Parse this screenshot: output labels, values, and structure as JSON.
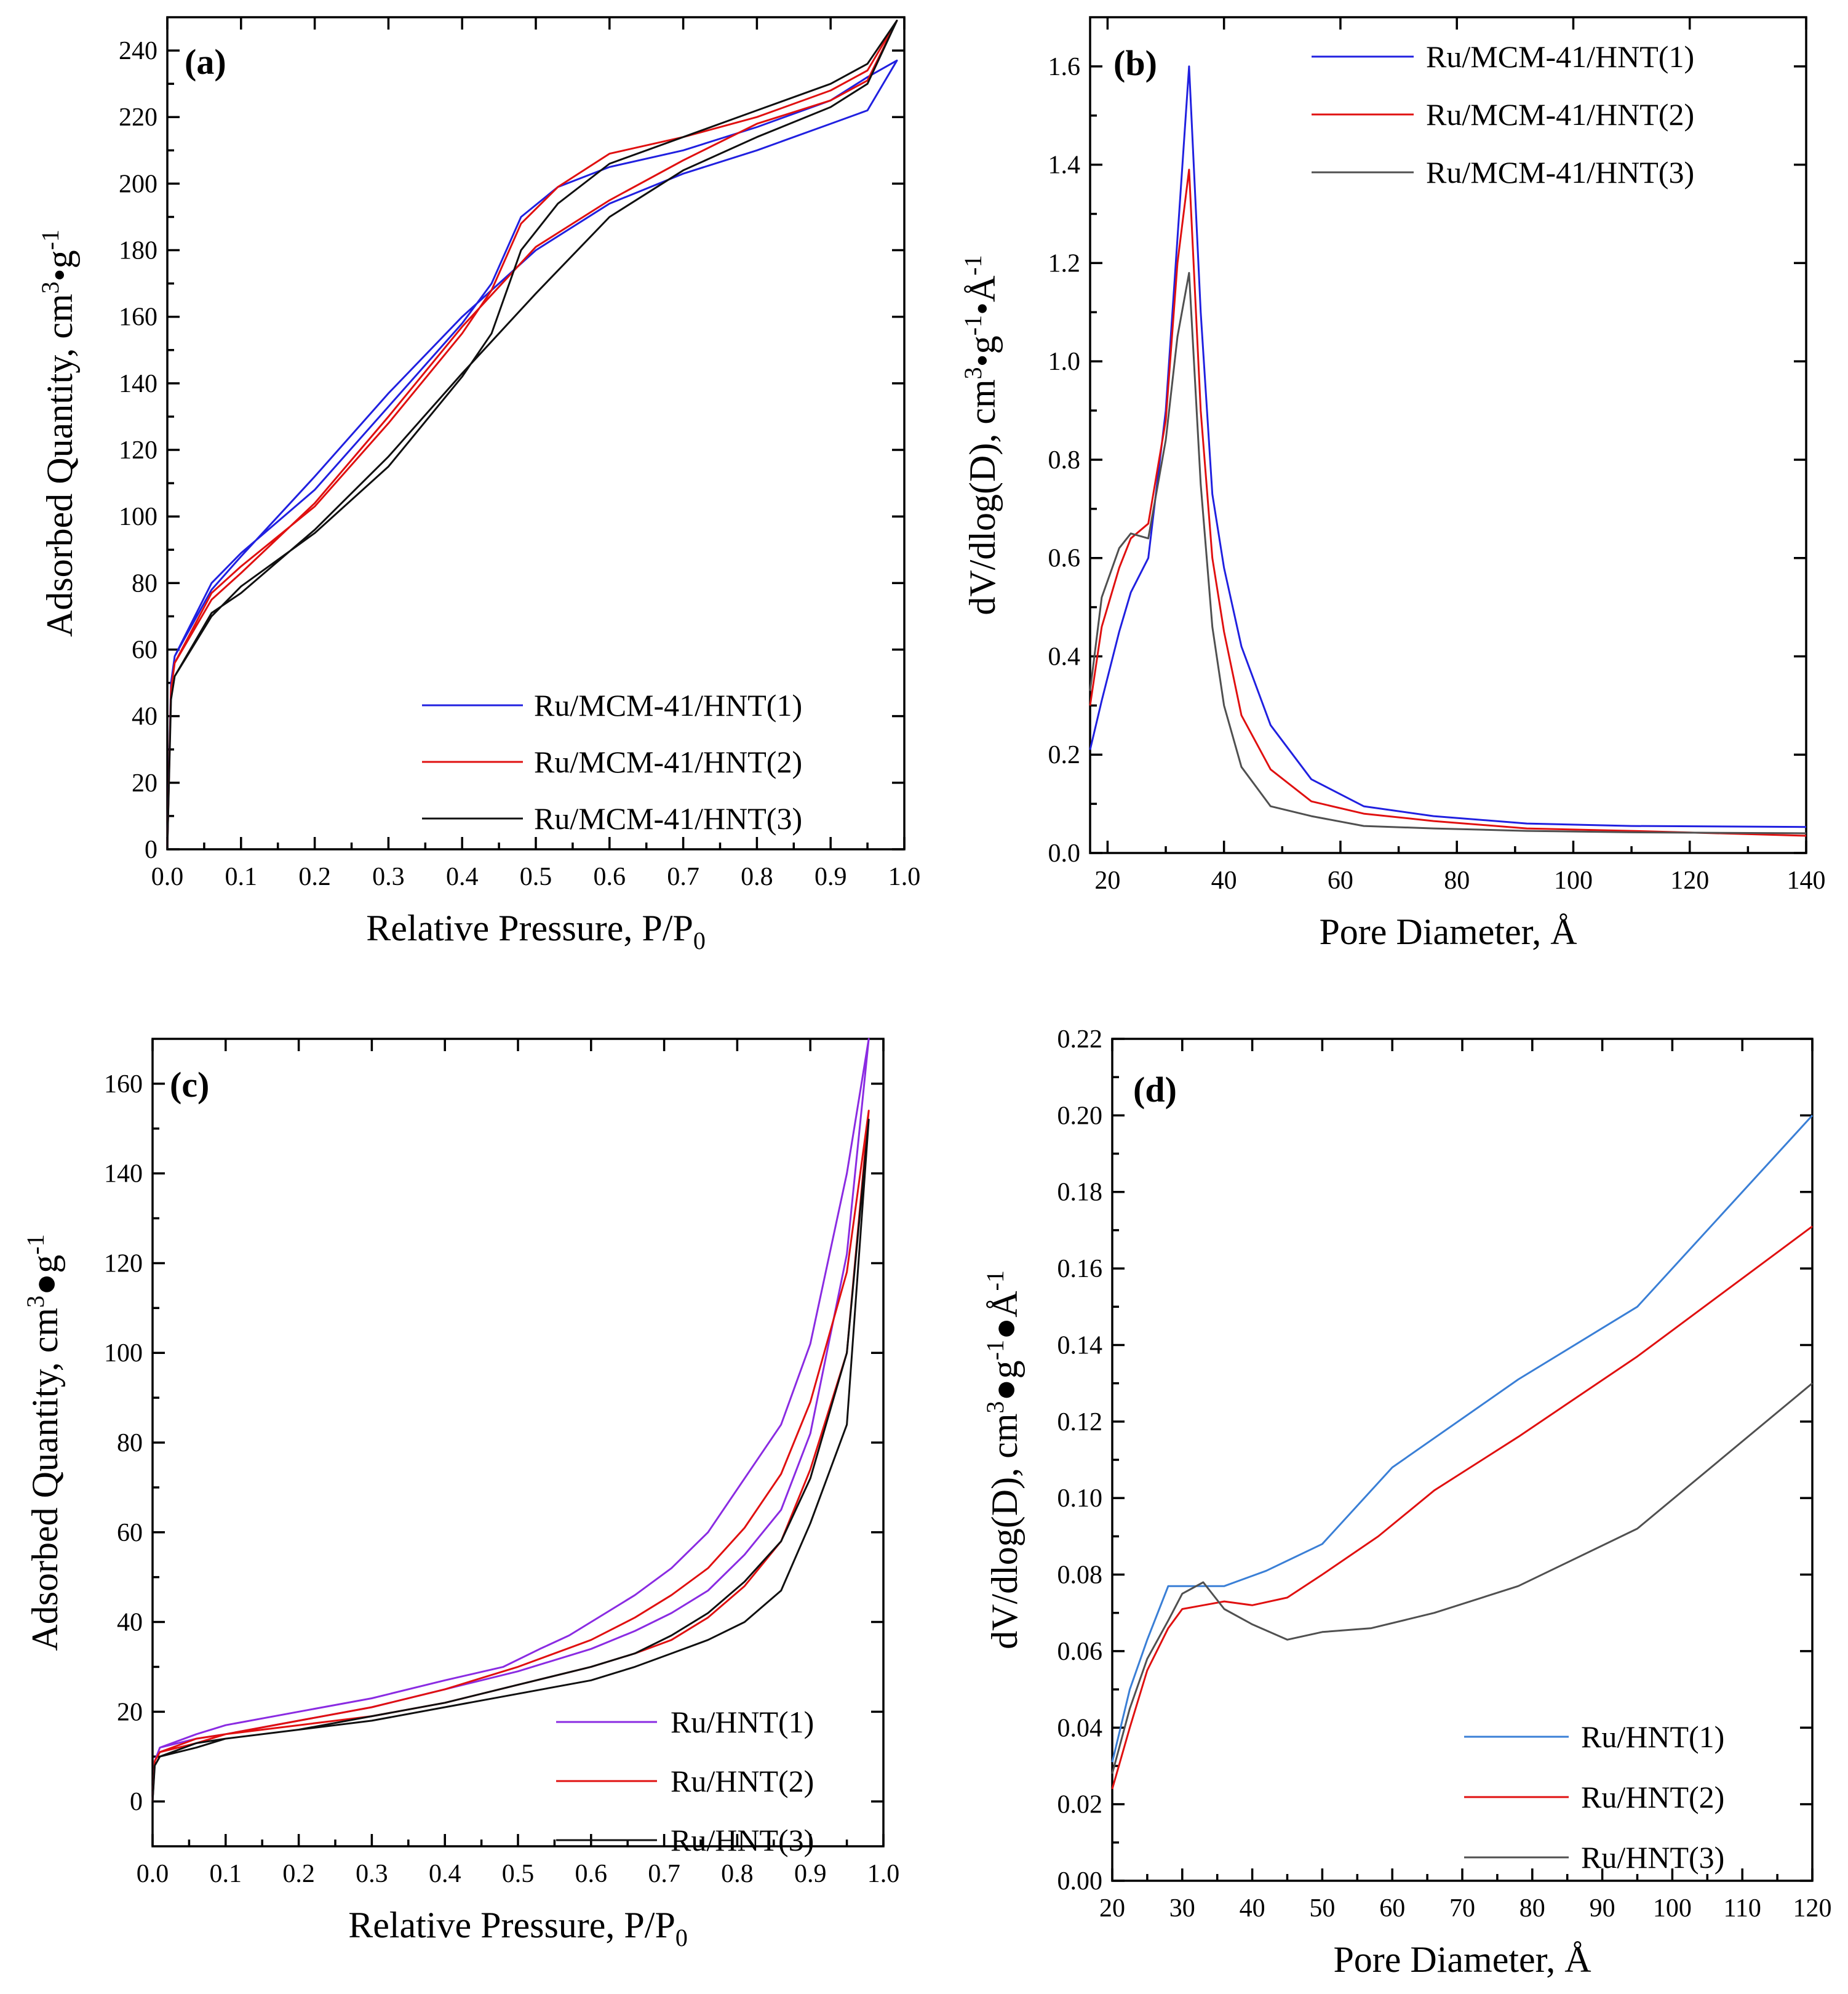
{
  "colors": {
    "blue": "#2020e0",
    "red": "#e01010",
    "black": "#101010",
    "purple": "#8a2be2",
    "gray": "#505050",
    "lightblue": "#3a7fd6"
  },
  "chart_data": [
    {
      "id": "a",
      "type": "line",
      "panel_label": "(a)",
      "xlabel": "Relative Pressure, P/P",
      "xlabel_sub": "0",
      "ylabel": "Adsorbed Quantity, cm",
      "ylabel_sup1": "3",
      "ylabel_mid": "•g",
      "ylabel_sup2": "-1",
      "xlim": [
        0.0,
        1.0
      ],
      "ylim": [
        0,
        250
      ],
      "xticks": [
        "0.0",
        "0.1",
        "0.2",
        "0.3",
        "0.4",
        "0.5",
        "0.6",
        "0.7",
        "0.8",
        "0.9",
        "1.0"
      ],
      "yticks": [
        "0",
        "20",
        "40",
        "60",
        "80",
        "100",
        "120",
        "140",
        "160",
        "180",
        "200",
        "220",
        "240"
      ],
      "legend_position": "bottom-right",
      "series": [
        {
          "name": "Ru/MCM-41/HNT(1)",
          "color": "blue",
          "x": [
            0.0,
            0.005,
            0.01,
            0.06,
            0.1,
            0.2,
            0.3,
            0.4,
            0.44,
            0.48,
            0.53,
            0.6,
            0.7,
            0.8,
            0.9,
            0.95,
            0.99,
            0.95,
            0.9,
            0.8,
            0.7,
            0.6,
            0.5,
            0.4,
            0.3,
            0.2,
            0.1,
            0.06,
            0.01
          ],
          "y": [
            0,
            50,
            58,
            80,
            89,
            108,
            133,
            158,
            170,
            190,
            199,
            205,
            210,
            217,
            225,
            232,
            237,
            222,
            218,
            210,
            203,
            194,
            180,
            160,
            137,
            112,
            88,
            78,
            58
          ]
        },
        {
          "name": "Ru/MCM-41/HNT(2)",
          "color": "red",
          "x": [
            0.0,
            0.005,
            0.01,
            0.06,
            0.1,
            0.2,
            0.3,
            0.4,
            0.44,
            0.48,
            0.53,
            0.6,
            0.7,
            0.8,
            0.9,
            0.95,
            0.99,
            0.95,
            0.9,
            0.8,
            0.7,
            0.6,
            0.5,
            0.4,
            0.3,
            0.2,
            0.1,
            0.06,
            0.01
          ],
          "y": [
            0,
            48,
            56,
            77,
            85,
            103,
            128,
            155,
            168,
            188,
            199,
            209,
            214,
            220,
            228,
            234,
            249,
            231,
            225,
            218,
            207,
            195,
            181,
            157,
            130,
            104,
            83,
            75,
            56
          ]
        },
        {
          "name": "Ru/MCM-41/HNT(3)",
          "color": "black",
          "x": [
            0.0,
            0.005,
            0.01,
            0.06,
            0.1,
            0.2,
            0.3,
            0.4,
            0.44,
            0.48,
            0.53,
            0.6,
            0.7,
            0.8,
            0.9,
            0.95,
            0.99,
            0.95,
            0.9,
            0.8,
            0.7,
            0.6,
            0.5,
            0.4,
            0.3,
            0.2,
            0.1,
            0.06,
            0.01
          ],
          "y": [
            0,
            45,
            52,
            70,
            79,
            95,
            115,
            142,
            155,
            180,
            194,
            206,
            214,
            222,
            230,
            236,
            249,
            230,
            223,
            214,
            204,
            190,
            167,
            143,
            118,
            96,
            77,
            71,
            52
          ]
        }
      ]
    },
    {
      "id": "b",
      "type": "line",
      "panel_label": "(b)",
      "xlabel": "Pore Diameter, Å",
      "ylabel": "dV/dlog(D), cm",
      "ylabel_sup1": "3",
      "ylabel_mid": "•g",
      "ylabel_sup2": "-1",
      "ylabel_end": "•Å",
      "ylabel_sup3": "-1",
      "xlim": [
        17,
        140
      ],
      "ylim": [
        0.0,
        1.7
      ],
      "xticks": [
        "20",
        "40",
        "60",
        "80",
        "100",
        "120",
        "140"
      ],
      "yticks": [
        "0.0",
        "0.2",
        "0.4",
        "0.6",
        "0.8",
        "1.0",
        "1.2",
        "1.4",
        "1.6"
      ],
      "legend_position": "top-right",
      "series": [
        {
          "name": "Ru/MCM-41/HNT(1)",
          "color": "blue",
          "x": [
            17,
            19,
            22,
            24,
            27,
            30,
            32,
            34,
            36,
            38,
            40,
            43,
            48,
            55,
            64,
            76,
            92,
            110,
            140
          ],
          "y": [
            0.21,
            0.31,
            0.45,
            0.53,
            0.6,
            0.9,
            1.25,
            1.6,
            1.1,
            0.73,
            0.58,
            0.42,
            0.26,
            0.15,
            0.095,
            0.075,
            0.06,
            0.055,
            0.053
          ]
        },
        {
          "name": "Ru/MCM-41/HNT(2)",
          "color": "red",
          "x": [
            17,
            19,
            22,
            24,
            27,
            30,
            32,
            34,
            36,
            38,
            40,
            43,
            48,
            55,
            64,
            76,
            92,
            110,
            140
          ],
          "y": [
            0.3,
            0.46,
            0.58,
            0.64,
            0.67,
            0.88,
            1.2,
            1.39,
            0.9,
            0.6,
            0.45,
            0.28,
            0.17,
            0.105,
            0.08,
            0.065,
            0.05,
            0.045,
            0.035
          ]
        },
        {
          "name": "Ru/MCM-41/HNT(3)",
          "color": "gray",
          "x": [
            17,
            19,
            22,
            24,
            27,
            30,
            32,
            34,
            36,
            38,
            40,
            43,
            48,
            55,
            64,
            76,
            92,
            110,
            140
          ],
          "y": [
            0.33,
            0.52,
            0.62,
            0.65,
            0.64,
            0.84,
            1.05,
            1.18,
            0.75,
            0.46,
            0.3,
            0.175,
            0.095,
            0.075,
            0.055,
            0.05,
            0.045,
            0.042,
            0.04
          ]
        }
      ]
    },
    {
      "id": "c",
      "type": "line",
      "panel_label": "(c)",
      "xlabel": "Relative Pressure, P/P",
      "xlabel_sub": "0",
      "ylabel": "Adsorbed Quantity, cm",
      "ylabel_sup1": "3",
      "ylabel_mid": "●g",
      "ylabel_sup2": "-1",
      "xlim": [
        0.0,
        1.0
      ],
      "ylim": [
        -10,
        170
      ],
      "xticks": [
        "0.0",
        "0.1",
        "0.2",
        "0.3",
        "0.4",
        "0.5",
        "0.6",
        "0.7",
        "0.8",
        "0.9",
        "1.0"
      ],
      "yticks": [
        "0",
        "20",
        "40",
        "60",
        "80",
        "100",
        "120",
        "140",
        "160"
      ],
      "legend_position": "bottom-right",
      "series": [
        {
          "name": "Ru/HNT(1)",
          "color": "purple",
          "x": [
            0.0,
            0.003,
            0.01,
            0.06,
            0.1,
            0.2,
            0.3,
            0.4,
            0.48,
            0.53,
            0.57,
            0.62,
            0.66,
            0.71,
            0.76,
            0.81,
            0.86,
            0.9,
            0.95,
            0.98,
            0.95,
            0.9,
            0.86,
            0.81,
            0.76,
            0.71,
            0.66,
            0.6,
            0.5,
            0.4,
            0.3,
            0.2,
            0.1,
            0.06,
            0.01
          ],
          "y": [
            0,
            9,
            12,
            15,
            17,
            20,
            23,
            27,
            30,
            34,
            37,
            42,
            46,
            52,
            60,
            72,
            84,
            102,
            140,
            170,
            122,
            82,
            65,
            55,
            47,
            42,
            38,
            34,
            29,
            25,
            21,
            18,
            15,
            14,
            12
          ]
        },
        {
          "name": "Ru/HNT(2)",
          "color": "red",
          "x": [
            0.0,
            0.003,
            0.01,
            0.06,
            0.1,
            0.2,
            0.3,
            0.4,
            0.5,
            0.6,
            0.66,
            0.71,
            0.76,
            0.81,
            0.86,
            0.9,
            0.95,
            0.98,
            0.95,
            0.9,
            0.86,
            0.81,
            0.76,
            0.71,
            0.66,
            0.6,
            0.5,
            0.4,
            0.3,
            0.2,
            0.1,
            0.06,
            0.01
          ],
          "y": [
            0,
            9,
            11,
            14,
            15,
            18,
            21,
            25,
            30,
            36,
            41,
            46,
            52,
            61,
            73,
            89,
            118,
            154,
            100,
            74,
            58,
            48,
            41,
            36,
            33,
            30,
            26,
            22,
            19,
            17,
            15,
            13,
            11
          ]
        },
        {
          "name": "Ru/HNT(3)",
          "color": "black",
          "x": [
            0.0,
            0.003,
            0.01,
            0.06,
            0.1,
            0.2,
            0.3,
            0.4,
            0.5,
            0.6,
            0.66,
            0.71,
            0.76,
            0.81,
            0.86,
            0.9,
            0.95,
            0.98,
            0.95,
            0.9,
            0.86,
            0.81,
            0.76,
            0.71,
            0.66,
            0.6,
            0.5,
            0.4,
            0.3,
            0.2,
            0.1,
            0.06,
            0.01
          ],
          "y": [
            0,
            8,
            10,
            13,
            14,
            16,
            19,
            22,
            26,
            30,
            33,
            37,
            42,
            49,
            58,
            72,
            100,
            152,
            84,
            62,
            47,
            40,
            36,
            33,
            30,
            27,
            24,
            21,
            18,
            16,
            14,
            12,
            10
          ]
        }
      ]
    },
    {
      "id": "d",
      "type": "line",
      "panel_label": "(d)",
      "xlabel": "Pore Diameter, Å",
      "ylabel": "dV/dlog(D), cm",
      "ylabel_sup1": "3",
      "ylabel_mid": "●g",
      "ylabel_sup2": "-1",
      "ylabel_end": "●Å",
      "ylabel_sup3": "-1",
      "xlim": [
        20,
        120
      ],
      "ylim": [
        0.0,
        0.22
      ],
      "xticks": [
        "20",
        "30",
        "40",
        "50",
        "60",
        "70",
        "80",
        "90",
        "100",
        "110",
        "120"
      ],
      "yticks": [
        "0.00",
        "0.02",
        "0.04",
        "0.06",
        "0.08",
        "0.10",
        "0.12",
        "0.14",
        "0.16",
        "0.18",
        "0.20",
        "0.22"
      ],
      "legend_position": "bottom-right",
      "series": [
        {
          "name": "Ru/HNT(1)",
          "color": "lightblue",
          "x": [
            20,
            22.5,
            25,
            28,
            32,
            36,
            42,
            50,
            60,
            78,
            95,
            120
          ],
          "y": [
            0.031,
            0.05,
            0.063,
            0.077,
            0.077,
            0.077,
            0.081,
            0.088,
            0.108,
            0.131,
            0.15,
            0.2
          ]
        },
        {
          "name": "Ru/HNT(2)",
          "color": "red",
          "x": [
            20,
            22.5,
            25,
            28,
            30,
            33,
            36,
            40,
            45,
            50,
            58,
            66,
            78,
            95,
            120
          ],
          "y": [
            0.024,
            0.04,
            0.055,
            0.066,
            0.071,
            0.072,
            0.073,
            0.072,
            0.074,
            0.08,
            0.09,
            0.102,
            0.116,
            0.137,
            0.171
          ]
        },
        {
          "name": "Ru/HNT(3)",
          "color": "gray",
          "x": [
            20,
            22.5,
            25,
            28,
            30,
            33,
            36,
            40,
            45,
            50,
            57,
            66,
            78,
            95,
            120
          ],
          "y": [
            0.028,
            0.045,
            0.058,
            0.068,
            0.075,
            0.078,
            0.071,
            0.067,
            0.063,
            0.065,
            0.066,
            0.07,
            0.077,
            0.092,
            0.13
          ]
        }
      ]
    }
  ]
}
